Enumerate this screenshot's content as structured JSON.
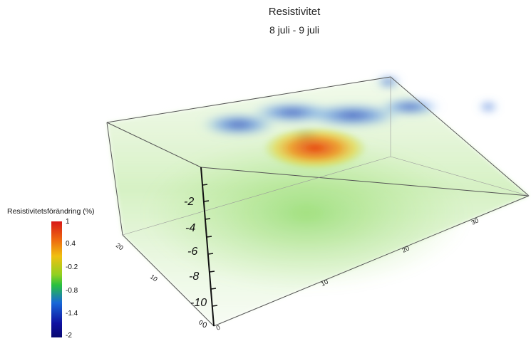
{
  "title": "Resistivitet",
  "subtitle": "8 juli - 9 juli",
  "legend": {
    "title": "Resistivitetsförändring (%)",
    "ticks": [
      "1",
      "0.4",
      "-0.2",
      "-0.8",
      "-1.4",
      "-2"
    ]
  },
  "axes": {
    "depth_ticks": [
      "-2",
      "-4",
      "-6",
      "-8",
      "-10",
      "0"
    ],
    "y_ticks": [
      "20",
      "10",
      "0"
    ],
    "x_ticks": [
      "0",
      "10",
      "20",
      "30"
    ]
  },
  "colors": {
    "background": "#ffffff",
    "volume_base": "#d8f0c0",
    "anomaly_high": "#d83010",
    "anomaly_low": "#1a3cc8"
  }
}
